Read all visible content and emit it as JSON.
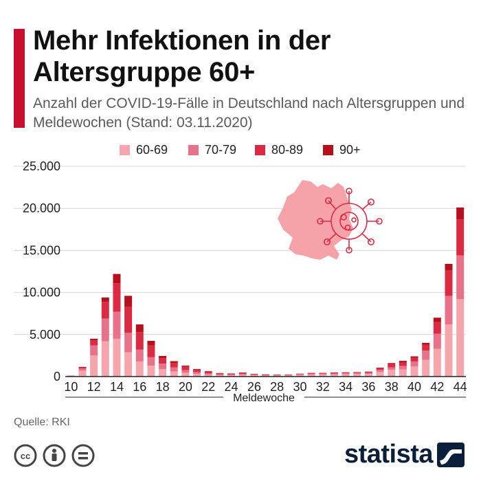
{
  "header": {
    "title": "Mehr Infektionen in der Altersgruppe 60+",
    "subtitle": "Anzahl der COVID-19-Fälle in Deutschland nach Altersgruppen und Meldewochen (Stand: 03.11.2020)"
  },
  "footer": {
    "source": "Quelle: RKI",
    "brand": "statista",
    "license_icons": [
      "cc-icon",
      "attribution-icon",
      "no-derivatives-icon"
    ]
  },
  "colors": {
    "accent": "#c8102e",
    "s60": "#f7a5ad",
    "s70": "#e8728a",
    "s80": "#dc2a43",
    "s90": "#b5101c",
    "map": "#f5a3a8",
    "brand": "#0a1f3a"
  },
  "chart_data": {
    "type": "bar",
    "stacked": true,
    "xlabel": "Meldewoche",
    "ylabel": "",
    "ylim": [
      0,
      25000
    ],
    "yticks": [
      "0",
      "5.000",
      "10.000",
      "15.000",
      "20.000",
      "25.000"
    ],
    "ytick_values": [
      0,
      5000,
      10000,
      15000,
      20000,
      25000
    ],
    "xtick_labels": [
      "10",
      "12",
      "14",
      "16",
      "18",
      "20",
      "22",
      "24",
      "26",
      "28",
      "30",
      "32",
      "34",
      "36",
      "38",
      "40",
      "42",
      "44"
    ],
    "legend_position": "top",
    "grid": true,
    "categories": [
      "10",
      "11",
      "12",
      "13",
      "14",
      "15",
      "16",
      "17",
      "18",
      "19",
      "20",
      "21",
      "22",
      "23",
      "24",
      "25",
      "26",
      "27",
      "28",
      "29",
      "30",
      "31",
      "32",
      "33",
      "34",
      "35",
      "36",
      "37",
      "38",
      "39",
      "40",
      "41",
      "42",
      "43",
      "44"
    ],
    "series": [
      {
        "name": "60-69",
        "color": "#f7a5ad",
        "values": [
          50,
          700,
          2500,
          4200,
          4500,
          2900,
          1800,
          1300,
          900,
          600,
          450,
          320,
          220,
          170,
          160,
          200,
          150,
          120,
          120,
          120,
          180,
          230,
          240,
          250,
          280,
          300,
          320,
          550,
          800,
          850,
          1200,
          2000,
          3300,
          6200,
          9200
        ]
      },
      {
        "name": "70-79",
        "color": "#e8728a",
        "values": [
          30,
          250,
          1200,
          2700,
          3200,
          2300,
          1400,
          1000,
          650,
          480,
          320,
          220,
          160,
          110,
          100,
          120,
          90,
          70,
          60,
          60,
          90,
          110,
          110,
          120,
          120,
          120,
          130,
          250,
          300,
          420,
          600,
          1100,
          1800,
          3400,
          5200
        ]
      },
      {
        "name": "80-89",
        "color": "#dc2a43",
        "values": [
          20,
          150,
          600,
          2000,
          3400,
          3100,
          2100,
          1400,
          650,
          550,
          400,
          260,
          200,
          110,
          90,
          120,
          70,
          60,
          50,
          50,
          60,
          80,
          80,
          80,
          80,
          80,
          100,
          180,
          350,
          400,
          450,
          700,
          1400,
          3000,
          4300
        ]
      },
      {
        "name": "90+",
        "color": "#b5101c",
        "values": [
          5,
          50,
          200,
          500,
          1100,
          1300,
          900,
          550,
          250,
          200,
          130,
          90,
          60,
          30,
          30,
          40,
          20,
          20,
          20,
          20,
          20,
          20,
          20,
          30,
          30,
          30,
          40,
          70,
          150,
          200,
          150,
          200,
          500,
          800,
          1400
        ]
      }
    ]
  }
}
